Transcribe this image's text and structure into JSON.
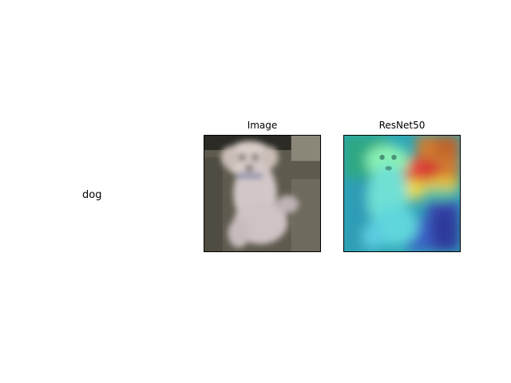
{
  "row_label": "dog",
  "panels": [
    {
      "title": "Image"
    },
    {
      "title": "ResNet50"
    }
  ]
}
